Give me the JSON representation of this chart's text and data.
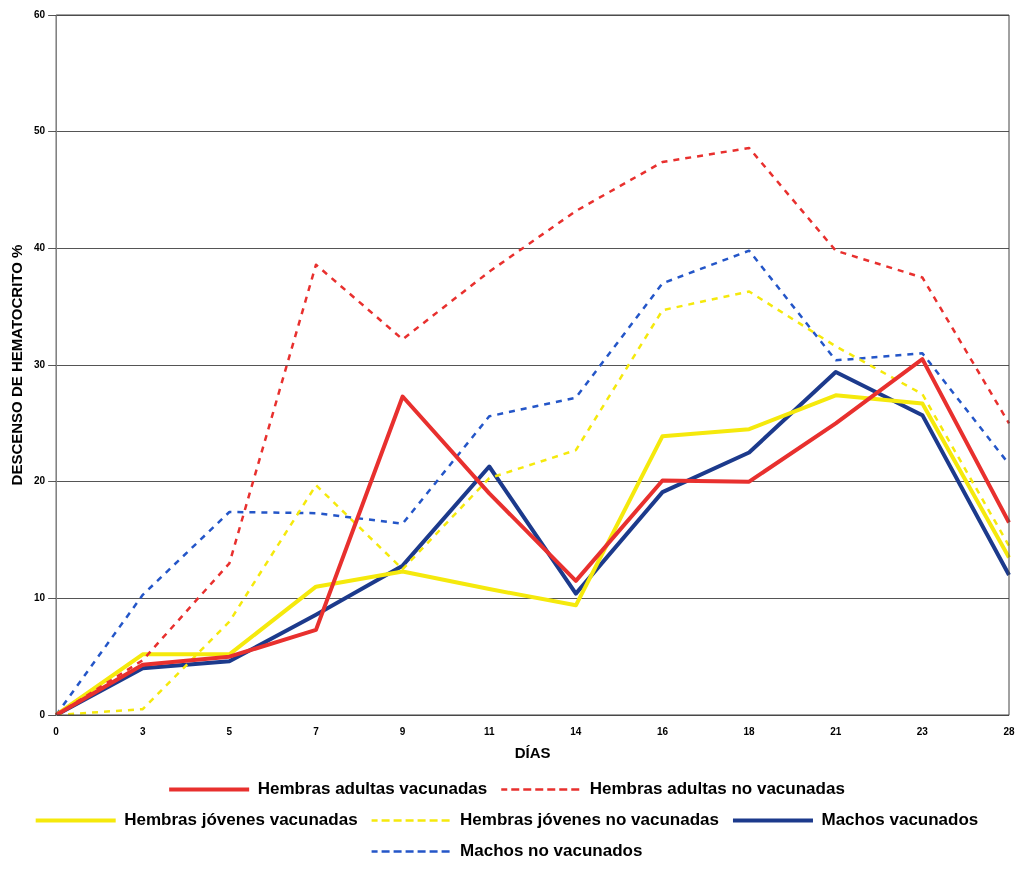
{
  "chart_data": {
    "type": "line",
    "xlabel": "DÍAS",
    "ylabel": "DESCENSO DE HEMATOCRITO %",
    "categories": [
      "0",
      "3",
      "5",
      "7",
      "9",
      "11",
      "14",
      "16",
      "18",
      "21",
      "23",
      "28"
    ],
    "ylim": [
      0,
      60
    ],
    "yticks": [
      0,
      10,
      20,
      30,
      40,
      50,
      60
    ],
    "grid": "y",
    "legend": "bottom",
    "marker": "none",
    "series": [
      {
        "name": "Hembras adultas vacunadas",
        "color": "#e8302e",
        "line_style": "solid",
        "values": [
          0,
          4.3,
          5,
          7.3,
          27.3,
          19,
          11.5,
          20.1,
          20,
          25,
          30.5,
          16.5
        ]
      },
      {
        "name": "Hembras adultas no vacunadas",
        "color": "#e8302e",
        "line_style": "dashed",
        "values": [
          0,
          4.7,
          13,
          38.6,
          32.2,
          38,
          43.2,
          47.4,
          48.6,
          39.8,
          37.5,
          25
        ]
      },
      {
        "name": "Hembras jóvenes vacunadas",
        "color": "#f5e90c",
        "line_style": "solid",
        "values": [
          0,
          5.2,
          5.2,
          11,
          12.3,
          10.8,
          9.4,
          23.9,
          24.5,
          27.4,
          26.7,
          13.5
        ]
      },
      {
        "name": "Hembras jóvenes no vacunadas",
        "color": "#f5e90c",
        "line_style": "dashed",
        "values": [
          0,
          0.5,
          8,
          19.7,
          12.5,
          20.3,
          22.7,
          34.7,
          36.3,
          31.6,
          27.5,
          14.5
        ]
      },
      {
        "name": "Machos vacunados",
        "color": "#1c3a8c",
        "line_style": "solid",
        "values": [
          0,
          4,
          4.6,
          8.6,
          12.8,
          21.3,
          10.4,
          19.1,
          22.5,
          29.4,
          25.7,
          12
        ]
      },
      {
        "name": "Machos no vacunados",
        "color": "#2456c8",
        "line_style": "dashed",
        "values": [
          0,
          10.3,
          17.4,
          17.3,
          16.4,
          25.6,
          27.2,
          37,
          39.8,
          30.4,
          31,
          21.5
        ]
      }
    ]
  }
}
